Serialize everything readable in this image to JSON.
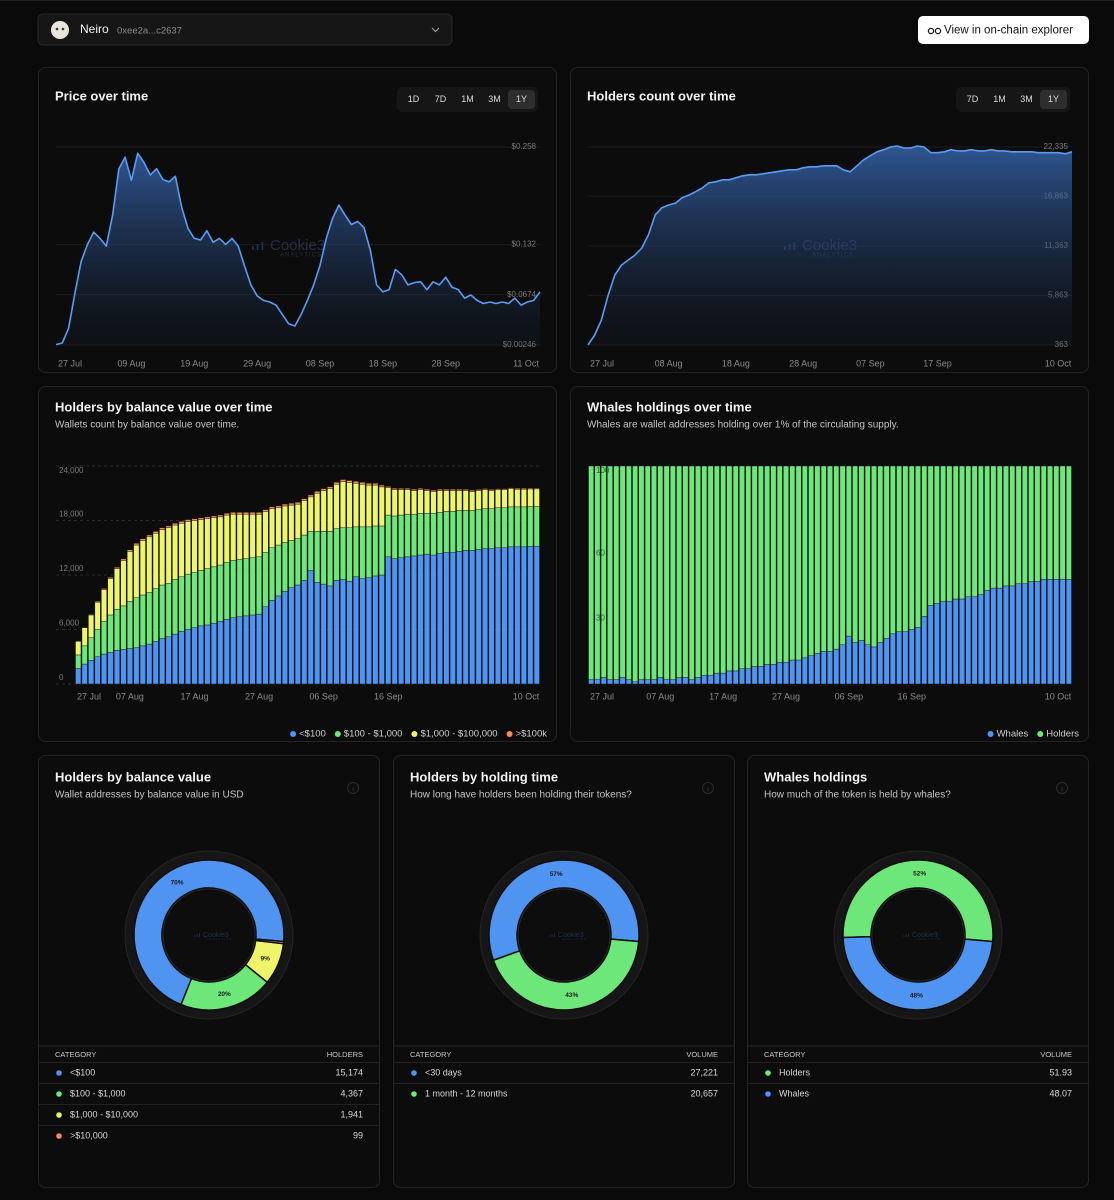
{
  "header": {
    "token": "Neiro",
    "address": "0xee2a...c2637",
    "button": "View in on-chain explorer"
  },
  "watermark": {
    "name": "Cookie3",
    "sub": "ANALYTICS"
  },
  "chart_data": [
    {
      "type": "area",
      "title": "Price over time",
      "ranges": [
        "1D",
        "7D",
        "1M",
        "3M",
        "1Y"
      ],
      "active_range": "1Y",
      "categories": [
        "27 Jul",
        null,
        null,
        null,
        null,
        null,
        null,
        null,
        null,
        null,
        null,
        null,
        "09 Aug",
        null,
        null,
        null,
        null,
        null,
        null,
        null,
        null,
        null,
        "19 Aug",
        null,
        null,
        null,
        null,
        null,
        null,
        null,
        null,
        null,
        "29 Aug",
        null,
        null,
        null,
        null,
        null,
        null,
        null,
        null,
        null,
        "08 Sep",
        null,
        null,
        null,
        null,
        null,
        null,
        null,
        null,
        null,
        "18 Sep",
        null,
        null,
        null,
        null,
        null,
        null,
        null,
        null,
        null,
        "28 Sep",
        null,
        null,
        null,
        null,
        null,
        null,
        null,
        null,
        null,
        null,
        null,
        null,
        "11 Oct",
        null,
        null
      ],
      "values": [
        0.003,
        0.005,
        0.024,
        0.069,
        0.11,
        0.132,
        0.148,
        0.14,
        0.13,
        0.17,
        0.23,
        0.245,
        0.215,
        0.25,
        0.238,
        0.222,
        0.23,
        0.216,
        0.213,
        0.22,
        0.18,
        0.153,
        0.14,
        0.138,
        0.15,
        0.135,
        0.14,
        0.132,
        0.14,
        0.13,
        0.104,
        0.08,
        0.066,
        0.06,
        0.058,
        0.054,
        0.042,
        0.03,
        0.027,
        0.042,
        0.06,
        0.08,
        0.105,
        0.14,
        0.166,
        0.183,
        0.17,
        0.158,
        0.162,
        0.154,
        0.125,
        0.08,
        0.071,
        0.074,
        0.1,
        0.093,
        0.08,
        0.083,
        0.084,
        0.074,
        0.084,
        0.08,
        0.09,
        0.077,
        0.074,
        0.063,
        0.067,
        0.06,
        0.056,
        0.058,
        0.056,
        0.058,
        0.056,
        0.063,
        0.054,
        0.058,
        0.06,
        0.071
      ],
      "color": "#5b9cf2",
      "ylim": [
        0.00246,
        0.258
      ],
      "yticks": [
        {
          "value": 0.00246,
          "label": "$0.00246"
        },
        {
          "value": 0.0674,
          "label": "$0.0674"
        },
        {
          "value": 0.132,
          "label": "$0.132"
        },
        {
          "value": 0.258,
          "label": "$0.258"
        }
      ],
      "grid": true
    },
    {
      "type": "area",
      "title": "Holders count over time",
      "ranges": [
        "7D",
        "1M",
        "3M",
        "1Y"
      ],
      "active_range": "1Y",
      "categories": [
        "27 Jul",
        null,
        null,
        null,
        null,
        null,
        null,
        null,
        null,
        null,
        null,
        null,
        "08 Aug",
        null,
        null,
        null,
        null,
        null,
        null,
        null,
        null,
        null,
        "18 Aug",
        null,
        null,
        null,
        null,
        null,
        null,
        null,
        null,
        null,
        "28 Aug",
        null,
        null,
        null,
        null,
        null,
        null,
        null,
        null,
        null,
        "07 Sep",
        null,
        null,
        null,
        null,
        null,
        null,
        null,
        null,
        null,
        "17 Sep",
        null,
        null,
        null,
        null,
        null,
        null,
        null,
        null,
        null,
        null,
        null,
        null,
        null,
        null,
        null,
        null,
        null,
        "10 Oct",
        null,
        null
      ],
      "values": [
        363,
        1470,
        3140,
        5900,
        8130,
        9240,
        9800,
        10350,
        11130,
        12600,
        14800,
        15600,
        15900,
        16100,
        16700,
        17000,
        17370,
        17800,
        18360,
        18470,
        18700,
        18700,
        18920,
        19140,
        19250,
        19250,
        19360,
        19470,
        19580,
        19700,
        19800,
        19800,
        20030,
        20140,
        20140,
        20250,
        20250,
        20250,
        19800,
        19580,
        20250,
        20920,
        21360,
        21800,
        22030,
        22335,
        22450,
        22220,
        22220,
        22450,
        22335,
        21700,
        21700,
        21800,
        22030,
        21900,
        21900,
        22030,
        21900,
        21900,
        22030,
        21900,
        21900,
        21800,
        21800,
        21800,
        21800,
        21700,
        21700,
        21700,
        21700,
        21580,
        21800
      ],
      "color": "#5b9cf2",
      "ylim": [
        363,
        22335
      ],
      "yticks": [
        363,
        {
          "value": 5863,
          "label": "5,863"
        },
        {
          "value": 11363,
          "label": "11,363"
        },
        {
          "value": 16863,
          "label": "16,863"
        },
        {
          "value": 22335,
          "label": "22,335"
        }
      ],
      "grid": true
    },
    {
      "type": "stacked_bar",
      "title": "Holders by balance value over time",
      "subtitle": "Wallets count by balance value over time.",
      "categories": [
        "27 Jul",
        null,
        null,
        null,
        null,
        null,
        null,
        null,
        "07 Aug",
        null,
        null,
        null,
        null,
        null,
        null,
        null,
        null,
        null,
        "17 Aug",
        null,
        null,
        null,
        null,
        null,
        null,
        null,
        null,
        null,
        "27 Aug",
        null,
        null,
        null,
        null,
        null,
        null,
        null,
        null,
        null,
        "06 Sep",
        null,
        null,
        null,
        null,
        null,
        null,
        null,
        null,
        null,
        "16 Sep",
        null,
        null,
        null,
        null,
        null,
        null,
        null,
        null,
        null,
        null,
        null,
        null,
        null,
        null,
        null,
        null,
        null,
        null,
        null,
        null,
        null,
        null,
        "10 Oct"
      ],
      "series": [
        {
          "name": "<$100",
          "color": "#4f94f0",
          "values": [
            1700,
            2200,
            2600,
            3000,
            3300,
            3500,
            3700,
            3800,
            3900,
            4000,
            4200,
            4400,
            4700,
            5000,
            5200,
            5500,
            5800,
            6000,
            6200,
            6400,
            6500,
            6700,
            6900,
            7100,
            7300,
            7400,
            7500,
            7600,
            7700,
            8500,
            9200,
            9700,
            10200,
            10600,
            10900,
            11400,
            12500,
            11200,
            11000,
            10800,
            11400,
            11500,
            11300,
            11800,
            11600,
            11700,
            11900,
            12000,
            14000,
            13800,
            13900,
            14000,
            14100,
            14200,
            14300,
            14200,
            14400,
            14500,
            14500,
            14600,
            14700,
            14700,
            14800,
            14900,
            14900,
            15000,
            15000,
            15100,
            15100,
            15100,
            15150,
            15174
          ]
        },
        {
          "name": "$100 - $1,000",
          "color": "#6ee77a",
          "values": [
            1500,
            2000,
            2500,
            3000,
            3600,
            4100,
            4500,
            4800,
            5200,
            5500,
            5600,
            5700,
            5800,
            5900,
            5900,
            6000,
            6000,
            6100,
            6100,
            6100,
            6200,
            6200,
            6200,
            6300,
            6300,
            6300,
            6300,
            6300,
            6300,
            6000,
            5800,
            5600,
            5400,
            5200,
            5100,
            5000,
            4300,
            5600,
            5800,
            6000,
            5700,
            5700,
            5900,
            5500,
            5700,
            5600,
            5500,
            5400,
            4600,
            4700,
            4700,
            4700,
            4600,
            4600,
            4500,
            4600,
            4500,
            4500,
            4500,
            4500,
            4400,
            4400,
            4400,
            4400,
            4400,
            4400,
            4400,
            4400,
            4400,
            4400,
            4380,
            4367
          ]
        },
        {
          "name": "$1,000 - $100,000",
          "color": "#eef56b",
          "values": [
            1500,
            2000,
            2500,
            3000,
            3500,
            4000,
            4500,
            5000,
            5500,
            5800,
            6000,
            6100,
            6100,
            6100,
            6100,
            6000,
            5900,
            5800,
            5700,
            5600,
            5500,
            5400,
            5300,
            5200,
            5100,
            5000,
            4900,
            4800,
            4700,
            4500,
            4300,
            4100,
            4000,
            3900,
            3800,
            3800,
            3800,
            4200,
            4500,
            4700,
            4900,
            5100,
            5000,
            4800,
            4700,
            4600,
            4500,
            4300,
            3000,
            2900,
            2800,
            2700,
            2600,
            2600,
            2500,
            2400,
            2400,
            2300,
            2300,
            2200,
            2200,
            2100,
            2100,
            2100,
            2000,
            2000,
            2000,
            2000,
            1950,
            1950,
            1945,
            1941
          ]
        },
        {
          "name": ">$100k",
          "color": "#f08b5a",
          "values": [
            40,
            60,
            80,
            100,
            120,
            140,
            160,
            170,
            180,
            190,
            200,
            200,
            200,
            200,
            200,
            200,
            200,
            200,
            200,
            200,
            200,
            200,
            200,
            200,
            200,
            200,
            200,
            200,
            200,
            200,
            210,
            210,
            210,
            210,
            210,
            210,
            210,
            210,
            210,
            210,
            210,
            210,
            210,
            210,
            210,
            210,
            200,
            200,
            150,
            150,
            140,
            140,
            140,
            140,
            140,
            140,
            140,
            140,
            140,
            140,
            130,
            130,
            120,
            120,
            120,
            110,
            110,
            110,
            100,
            100,
            100,
            99
          ]
        }
      ],
      "ylim": [
        0,
        24000
      ],
      "yticks": [
        0,
        {
          "value": 6000,
          "label": "6,000"
        },
        {
          "value": 12000,
          "label": "12,000"
        },
        {
          "value": 18000,
          "label": "18,000"
        },
        {
          "value": 24000,
          "label": "24,000"
        }
      ],
      "grid": true,
      "legend": "bottom-right"
    },
    {
      "type": "stacked_bar",
      "title": "Whales holdings over time",
      "subtitle": "Whales are wallet addresses holding over 1% of the circulating supply.",
      "categories": [
        "27 Jul",
        null,
        null,
        null,
        null,
        null,
        null,
        null,
        null,
        null,
        null,
        "07 Aug",
        null,
        null,
        null,
        null,
        null,
        null,
        null,
        null,
        null,
        "17 Aug",
        null,
        null,
        null,
        null,
        null,
        null,
        null,
        null,
        null,
        "27 Aug",
        null,
        null,
        null,
        null,
        null,
        null,
        null,
        null,
        null,
        "06 Sep",
        null,
        null,
        null,
        null,
        null,
        null,
        null,
        null,
        null,
        "16 Sep",
        null,
        null,
        null,
        null,
        null,
        null,
        null,
        null,
        null,
        null,
        null,
        null,
        null,
        null,
        null,
        null,
        null,
        null,
        null,
        null,
        null,
        null,
        null,
        "10 Oct",
        null
      ],
      "series": [
        {
          "name": "Whales",
          "color": "#4f94f0",
          "values": [
            2,
            2,
            3,
            2,
            2,
            3,
            2,
            1,
            2,
            2,
            2,
            3,
            2,
            2,
            3,
            3,
            2,
            3,
            4,
            4,
            5,
            5,
            6,
            6,
            7,
            7,
            8,
            8,
            9,
            9,
            10,
            10,
            11,
            11,
            12,
            13,
            14,
            15,
            15,
            16,
            18,
            22,
            19,
            20,
            18,
            17,
            19,
            21,
            23,
            24,
            24,
            25,
            26,
            31,
            36,
            37,
            38,
            38,
            39,
            39,
            40,
            40,
            41,
            43,
            44,
            44,
            45,
            45,
            46,
            46,
            47,
            47,
            48,
            48,
            48,
            48.1,
            48.07
          ]
        },
        {
          "name": "Holders",
          "color": "#6ee77a",
          "values": [
            98,
            98,
            97,
            98,
            98,
            97,
            98,
            99,
            98,
            98,
            98,
            97,
            98,
            98,
            97,
            97,
            98,
            97,
            96,
            96,
            95,
            95,
            94,
            94,
            93,
            93,
            92,
            92,
            91,
            91,
            90,
            90,
            89,
            89,
            88,
            87,
            86,
            85,
            85,
            84,
            82,
            78,
            81,
            80,
            82,
            83,
            81,
            79,
            77,
            76,
            76,
            75,
            74,
            69,
            64,
            63,
            62,
            62,
            61,
            61,
            60,
            60,
            59,
            57,
            56,
            56,
            55,
            55,
            54,
            54,
            53,
            53,
            52,
            52,
            52,
            51.9,
            51.93
          ]
        }
      ],
      "ylim": [
        0,
        100
      ],
      "yticks": [
        30,
        60,
        100
      ],
      "grid": false,
      "legend": "bottom-right"
    },
    {
      "type": "donut",
      "title": "Holders by balance value",
      "subtitle": "Wallet addresses by balance value in USD",
      "table_header": [
        "CATEGORY",
        "HOLDERS"
      ],
      "categories": [
        "<$100",
        "$100 - $1,000",
        "$1,000 - $10,000",
        ">$10,000"
      ],
      "values": [
        15174,
        4367,
        1941,
        99
      ],
      "value_labels": [
        "15,174",
        "4,367",
        "1,941",
        "99"
      ],
      "slice_labels": [
        "70%",
        "20%",
        "9%",
        null
      ],
      "colors": [
        "#4f94f0",
        "#6ee77a",
        "#eef56b",
        "#f08b5a"
      ]
    },
    {
      "type": "donut",
      "title": "Holders by holding time",
      "subtitle": "How long have holders been holding their tokens?",
      "table_header": [
        "CATEGORY",
        "VOLUME"
      ],
      "categories": [
        "<30 days",
        "1 month - 12 months"
      ],
      "values": [
        27221,
        20657
      ],
      "value_labels": [
        "27,221",
        "20,657"
      ],
      "slice_labels": [
        "57%",
        "43%"
      ],
      "colors": [
        "#4f94f0",
        "#6ee77a"
      ]
    },
    {
      "type": "donut",
      "title": "Whales holdings",
      "subtitle": "How much of the token is held by whales?",
      "table_header": [
        "CATEGORY",
        "VOLUME"
      ],
      "categories": [
        "Holders",
        "Whales"
      ],
      "values": [
        51.93,
        48.07
      ],
      "slice_labels": [
        "52%",
        "48%"
      ],
      "colors": [
        "#6ee77a",
        "#4f94f0"
      ]
    }
  ]
}
